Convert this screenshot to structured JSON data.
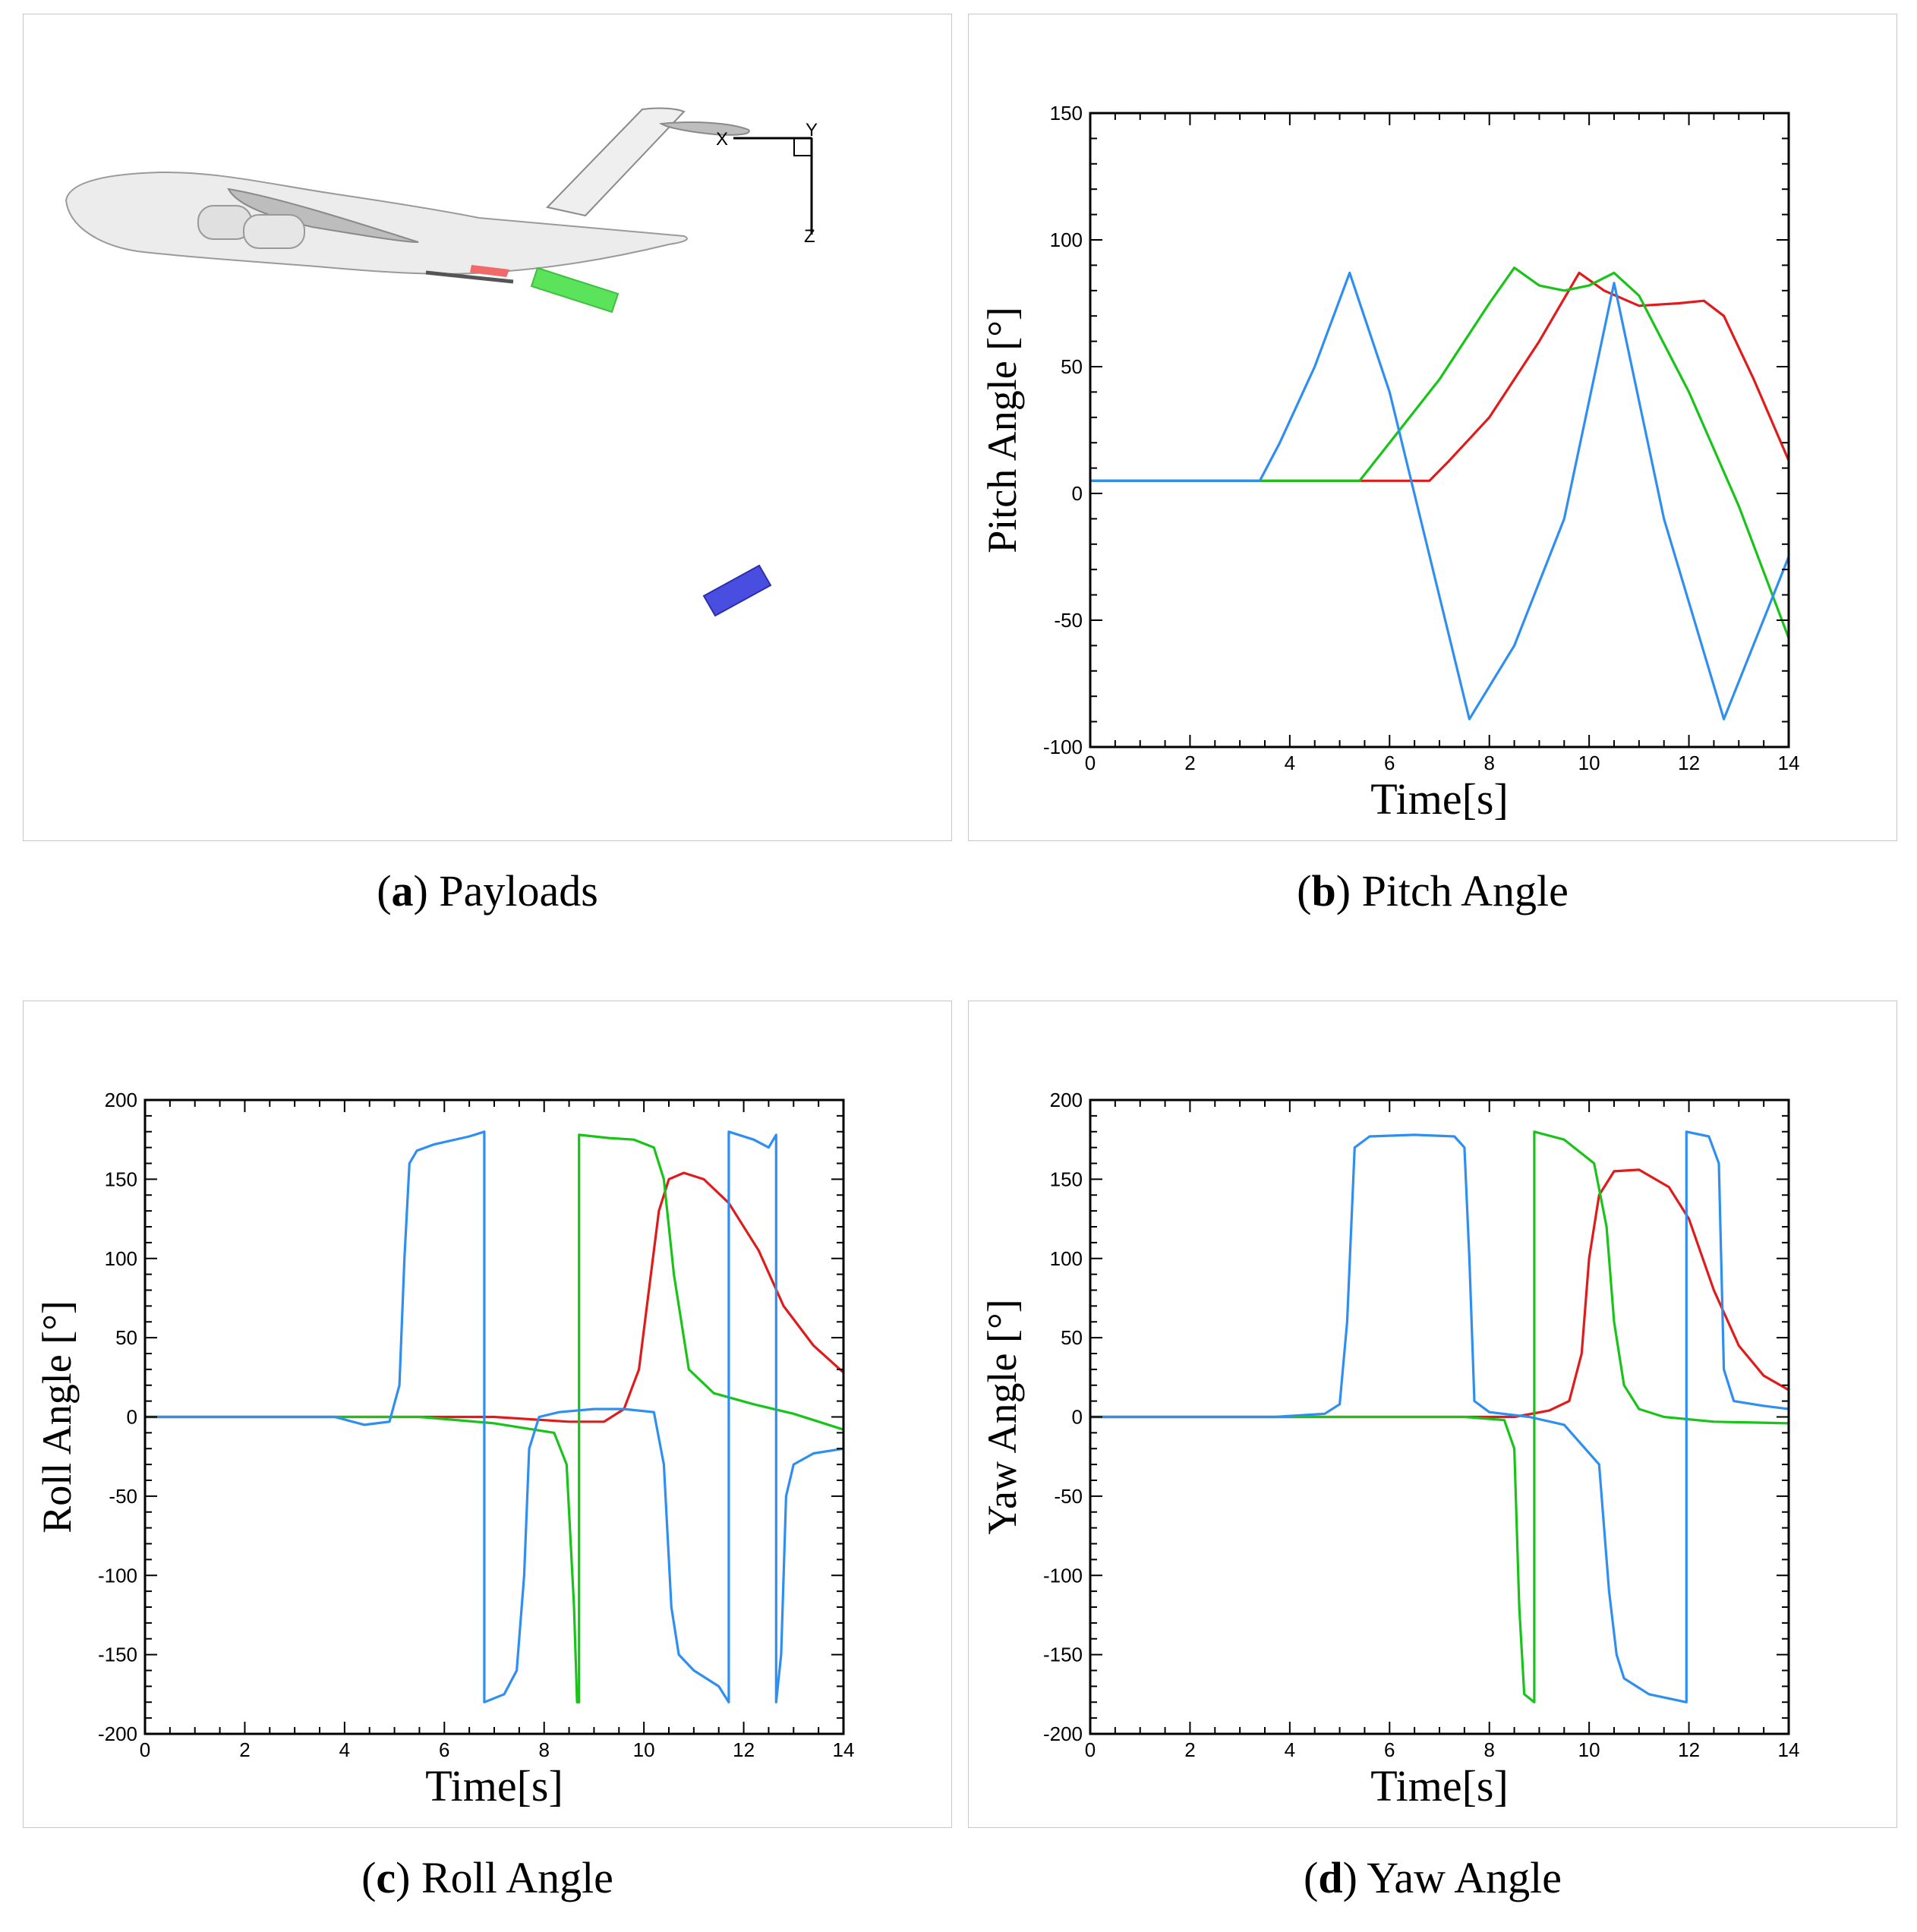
{
  "figure": {
    "captions": [
      {
        "label": "(a)",
        "letter": "a",
        "text": "Payloads"
      },
      {
        "label": "(b)",
        "letter": "b",
        "text": "Pitch Angle"
      },
      {
        "label": "(c)",
        "letter": "c",
        "text": "Roll Angle"
      },
      {
        "label": "(d)",
        "letter": "d",
        "text": "Yaw Angle"
      }
    ],
    "scene": {
      "axis_labels": {
        "x": "X",
        "y": "Y",
        "z": "Z"
      },
      "payload_colors": {
        "red": "#f06a6a",
        "green": "#5ce35c",
        "blue": "#4a4ee0"
      }
    }
  },
  "series_colors": {
    "blue": "#2f8ff0",
    "green": "#19c419",
    "red": "#e01b1b"
  },
  "chart_data": [
    {
      "id": "pitch",
      "type": "line",
      "title": "Pitch Angle",
      "xlabel": "Time[s]",
      "ylabel": "Pitch Angle [°]",
      "xlim": [
        0,
        14
      ],
      "ylim": [
        -100,
        150
      ],
      "xticks": [
        0,
        2,
        4,
        6,
        8,
        10,
        12,
        14
      ],
      "yticks": [
        -100,
        -50,
        0,
        50,
        100,
        150
      ],
      "series": [
        {
          "name": "red",
          "x": [
            0,
            6.8,
            7.2,
            8,
            9,
            9.8,
            10.3,
            11,
            11.8,
            12.3,
            12.7,
            13.3,
            14
          ],
          "y": [
            5,
            5,
            13,
            30,
            60,
            87,
            80,
            74,
            75,
            76,
            70,
            45,
            13
          ]
        },
        {
          "name": "green",
          "x": [
            0,
            5.4,
            6,
            7,
            8,
            8.5,
            9,
            9.5,
            10,
            10.5,
            11,
            12,
            13,
            14
          ],
          "y": [
            5,
            5,
            20,
            45,
            75,
            89,
            82,
            80,
            82,
            87,
            78,
            40,
            -5,
            -57
          ]
        },
        {
          "name": "blue",
          "x": [
            0,
            3.4,
            3.8,
            4.5,
            5.2,
            6,
            7.6,
            8.5,
            9.5,
            10.5,
            11.5,
            12.7,
            14
          ],
          "y": [
            5,
            5,
            20,
            50,
            87,
            40,
            -89,
            -60,
            -10,
            83,
            -10,
            -89,
            -25
          ]
        }
      ]
    },
    {
      "id": "roll",
      "type": "line",
      "title": "Roll Angle",
      "xlabel": "Time[s]",
      "ylabel": "Roll Angle [°]",
      "xlim": [
        0,
        14
      ],
      "ylim": [
        -200,
        200
      ],
      "xticks": [
        0,
        2,
        4,
        6,
        8,
        10,
        12,
        14
      ],
      "yticks": [
        -200,
        -150,
        -100,
        -50,
        0,
        50,
        100,
        150,
        200
      ],
      "series": [
        {
          "name": "red",
          "x": [
            0,
            4,
            7,
            8.5,
            9.2,
            9.6,
            9.9,
            10.1,
            10.3,
            10.5,
            10.8,
            11.2,
            11.7,
            12.3,
            12.8,
            13.4,
            14
          ],
          "y": [
            0,
            0,
            0,
            -3,
            -3,
            5,
            30,
            80,
            130,
            150,
            154,
            150,
            135,
            105,
            70,
            45,
            28
          ]
        },
        {
          "name": "green",
          "x": [
            0,
            5.5,
            7,
            8.2,
            8.45,
            8.6,
            8.66,
            8.7,
            8.7,
            9.3,
            9.8,
            10.2,
            10.4,
            10.6,
            10.9,
            11.4,
            12.2,
            13,
            14
          ],
          "y": [
            0,
            0,
            -4,
            -10,
            -30,
            -120,
            -180,
            -180,
            178,
            176,
            175,
            170,
            150,
            90,
            30,
            15,
            8,
            2,
            -8
          ]
        },
        {
          "name": "blue",
          "x": [
            0,
            3.8,
            4.4,
            4.9,
            5.1,
            5.2,
            5.3,
            5.45,
            5.8,
            6.5,
            6.8,
            6.8,
            7.2,
            7.45,
            7.6,
            7.7,
            7.9,
            8.3,
            9,
            9.6,
            10.2,
            10.4,
            10.55,
            10.7,
            11,
            11.5,
            11.7,
            11.7,
            12.2,
            12.5,
            12.65,
            12.65,
            12.75,
            12.85,
            13,
            13.4,
            14
          ],
          "y": [
            0,
            0,
            -5,
            -3,
            20,
            100,
            160,
            168,
            172,
            177,
            180,
            -180,
            -175,
            -160,
            -100,
            -20,
            0,
            3,
            5,
            5,
            3,
            -30,
            -120,
            -150,
            -160,
            -170,
            -180,
            180,
            175,
            170,
            178,
            -180,
            -150,
            -50,
            -30,
            -23,
            -20
          ]
        }
      ]
    },
    {
      "id": "yaw",
      "type": "line",
      "title": "Yaw Angle",
      "xlabel": "Time[s]",
      "ylabel": "Yaw Angle [°]",
      "xlim": [
        0,
        14
      ],
      "ylim": [
        -200,
        200
      ],
      "xticks": [
        0,
        2,
        4,
        6,
        8,
        10,
        12,
        14
      ],
      "yticks": [
        -200,
        -150,
        -100,
        -50,
        0,
        50,
        100,
        150,
        200
      ],
      "series": [
        {
          "name": "red",
          "x": [
            0,
            7.5,
            8.5,
            9.2,
            9.6,
            9.85,
            10,
            10.2,
            10.5,
            11,
            11.6,
            12,
            12.5,
            13,
            13.5,
            14
          ],
          "y": [
            0,
            0,
            0,
            4,
            10,
            40,
            100,
            140,
            155,
            156,
            145,
            125,
            80,
            45,
            26,
            17
          ]
        },
        {
          "name": "green",
          "x": [
            0,
            7.5,
            8.3,
            8.5,
            8.6,
            8.7,
            8.9,
            8.9,
            9.5,
            10.1,
            10.35,
            10.5,
            10.7,
            11,
            11.5,
            12.5,
            14
          ],
          "y": [
            0,
            0,
            -2,
            -20,
            -120,
            -175,
            -180,
            180,
            175,
            160,
            120,
            60,
            20,
            5,
            0,
            -3,
            -4
          ]
        },
        {
          "name": "blue",
          "x": [
            0,
            3.7,
            4.7,
            5,
            5.15,
            5.3,
            5.6,
            6.5,
            7.3,
            7.5,
            7.6,
            7.7,
            8,
            8.8,
            9.5,
            10.2,
            10.4,
            10.55,
            10.7,
            11.2,
            11.95,
            11.95,
            12.4,
            12.6,
            12.7,
            12.9,
            13.5,
            14
          ],
          "y": [
            0,
            0,
            2,
            8,
            60,
            170,
            177,
            178,
            177,
            170,
            100,
            10,
            3,
            0,
            -5,
            -30,
            -110,
            -150,
            -165,
            -175,
            -180,
            180,
            177,
            160,
            30,
            10,
            7,
            5
          ]
        }
      ]
    }
  ]
}
